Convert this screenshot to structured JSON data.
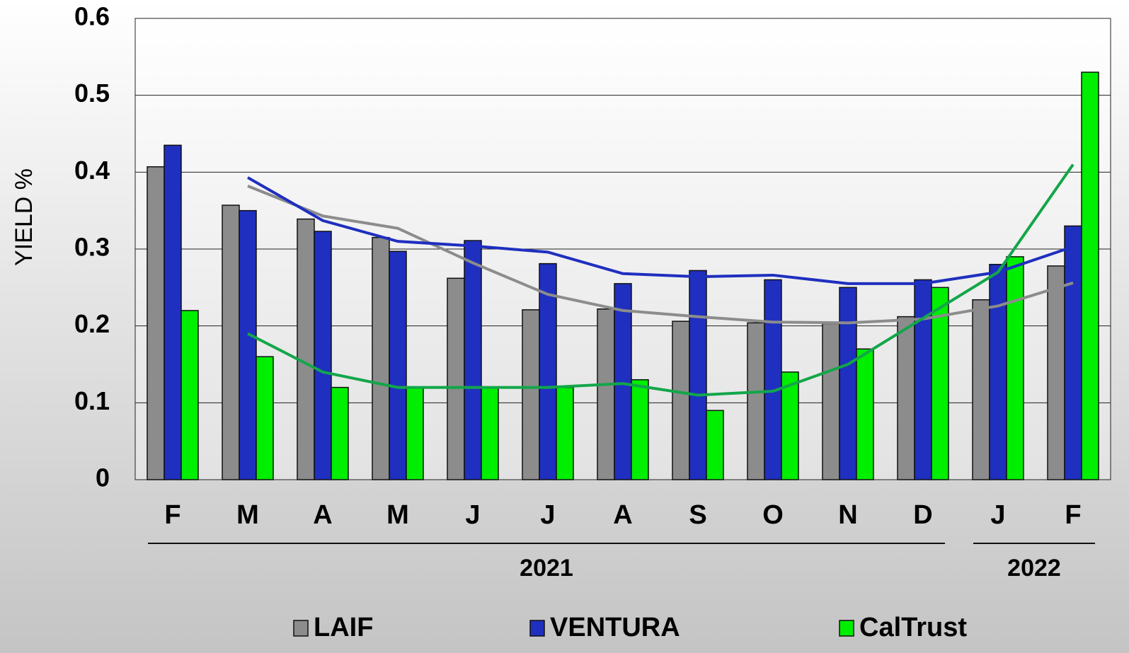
{
  "chart_data": {
    "type": "bar",
    "y_label": "YIELD %",
    "categories": [
      "F",
      "M",
      "A",
      "M",
      "J",
      "J",
      "A",
      "S",
      "O",
      "N",
      "D",
      "J",
      "F"
    ],
    "groups": [
      {
        "label": "2021",
        "count": 11
      },
      {
        "label": "2022",
        "count": 2
      }
    ],
    "series": [
      {
        "name": "LAIF",
        "color": "#8c8c8c",
        "line_color": "#8c8c8c",
        "values": [
          0.407,
          0.357,
          0.339,
          0.315,
          0.262,
          0.221,
          0.222,
          0.206,
          0.204,
          0.203,
          0.212,
          0.234,
          0.278
        ],
        "trend": [
          null,
          0.382,
          0.343,
          0.327,
          0.282,
          0.241,
          0.22,
          0.212,
          0.205,
          0.204,
          0.209,
          0.226,
          0.256
        ]
      },
      {
        "name": "VENTURA",
        "color": "#1f2fbf",
        "line_color": "#1f2fbf",
        "values": [
          0.435,
          0.35,
          0.323,
          0.297,
          0.311,
          0.281,
          0.255,
          0.272,
          0.26,
          0.25,
          0.26,
          0.28,
          0.33
        ],
        "trend": [
          null,
          0.393,
          0.337,
          0.31,
          0.304,
          0.296,
          0.268,
          0.264,
          0.266,
          0.255,
          0.255,
          0.27,
          0.303
        ]
      },
      {
        "name": "CalTrust",
        "color": "#00ee00",
        "line_color": "#13a64a",
        "values": [
          0.22,
          0.16,
          0.12,
          0.12,
          0.12,
          0.12,
          0.13,
          0.09,
          0.14,
          0.17,
          0.25,
          0.29,
          0.53
        ],
        "trend": [
          null,
          0.19,
          0.14,
          0.12,
          0.12,
          0.12,
          0.125,
          0.11,
          0.115,
          0.15,
          0.21,
          0.27,
          0.41
        ]
      }
    ],
    "ylim": [
      0,
      0.6
    ],
    "yticks": [
      0,
      0.1,
      0.2,
      0.3,
      0.4,
      0.5,
      0.6
    ],
    "grid": true
  }
}
